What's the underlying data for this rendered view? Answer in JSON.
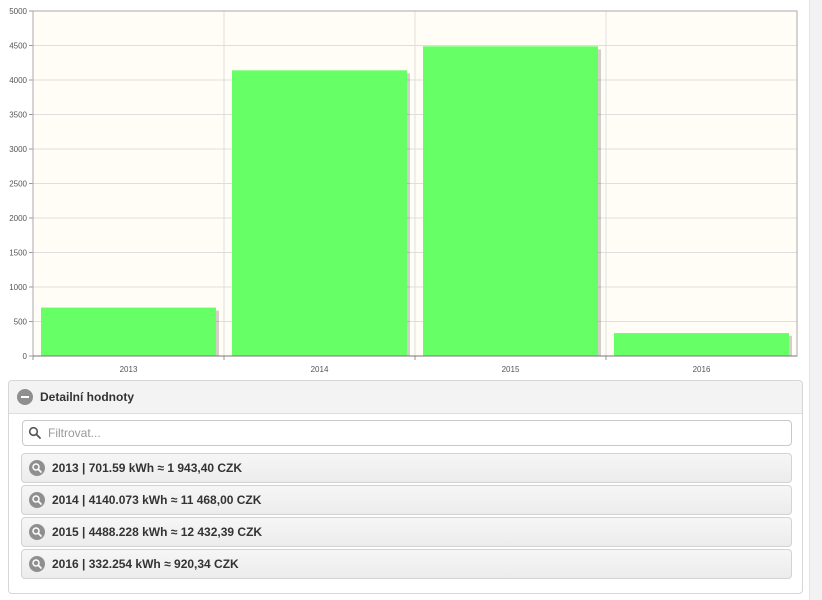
{
  "chart_data": {
    "type": "bar",
    "categories": [
      "2013",
      "2014",
      "2015",
      "2016"
    ],
    "values": [
      701.59,
      4140.073,
      4488.228,
      332.254
    ],
    "ylim": [
      0,
      5000
    ],
    "yticks": [
      0,
      500,
      1000,
      1500,
      2000,
      2500,
      3000,
      3500,
      4000,
      4500,
      5000
    ],
    "grid": true,
    "bar_color": "#66ff66",
    "background": "#fffdf5"
  },
  "panel": {
    "title": "Detailní hodnoty",
    "filter_placeholder": "Filtrovat...",
    "rows": [
      {
        "label": "2013 | 701.59 kWh ≈ 1 943,40 CZK"
      },
      {
        "label": "2014 | 4140.073 kWh ≈ 11 468,00 CZK"
      },
      {
        "label": "2015 | 4488.228 kWh ≈ 12 432,39 CZK"
      },
      {
        "label": "2016 | 332.254 kWh ≈ 920,34 CZK"
      }
    ]
  }
}
